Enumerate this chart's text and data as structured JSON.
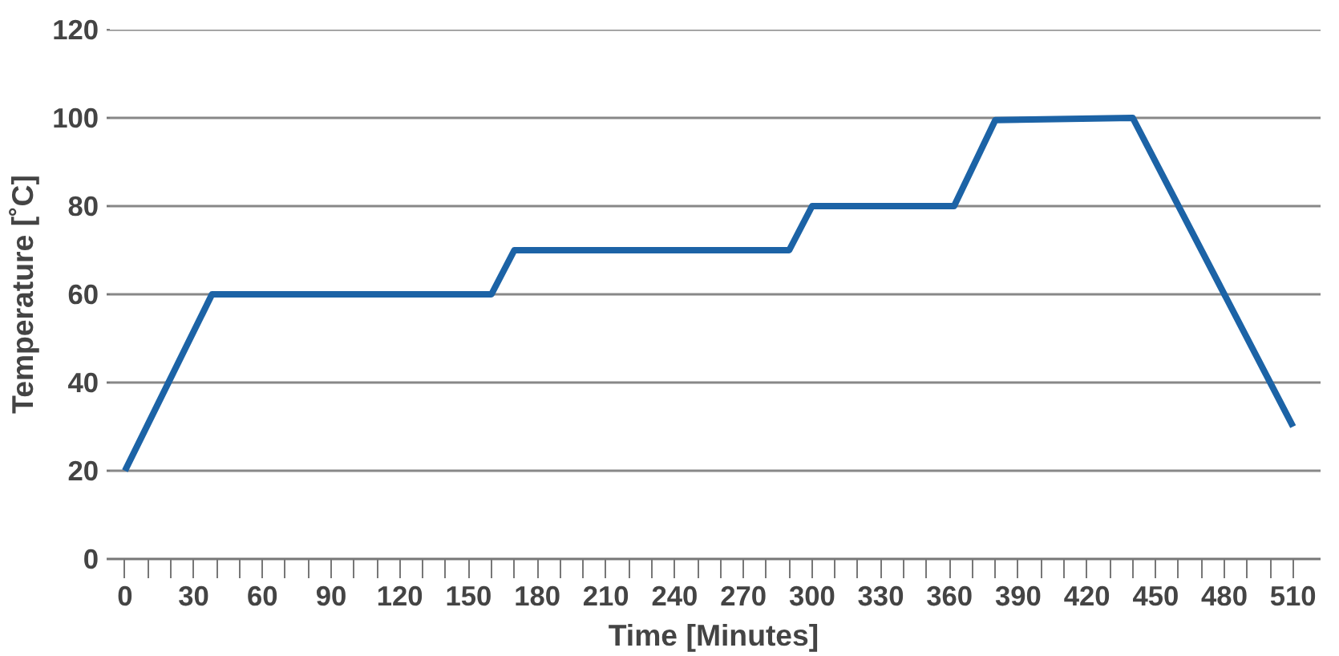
{
  "chart_data": {
    "type": "line",
    "xlabel": "Time [Minutes]",
    "ylabel": "Temperature [˚C]",
    "x": [
      0,
      38,
      160,
      170,
      290,
      300,
      362,
      380,
      440,
      510
    ],
    "series": [
      {
        "color": "#1c63a6",
        "values": [
          20,
          60,
          60,
          70,
          70,
          80,
          80,
          99.5,
          100,
          30
        ]
      }
    ],
    "xlim": [
      -8,
      522
    ],
    "ylim": [
      0,
      120
    ],
    "xticks": [
      0,
      {
        "value": 10,
        "label": null
      },
      {
        "value": 20,
        "label": null
      },
      30,
      {
        "value": 40,
        "label": null
      },
      {
        "value": 50,
        "label": null
      },
      60,
      {
        "value": 70,
        "label": null
      },
      {
        "value": 80,
        "label": null
      },
      90,
      {
        "value": 100,
        "label": null
      },
      {
        "value": 110,
        "label": null
      },
      120,
      {
        "value": 130,
        "label": null
      },
      {
        "value": 140,
        "label": null
      },
      150,
      {
        "value": 160,
        "label": null
      },
      {
        "value": 170,
        "label": null
      },
      180,
      {
        "value": 190,
        "label": null
      },
      {
        "value": 200,
        "label": null
      },
      210,
      {
        "value": 220,
        "label": null
      },
      {
        "value": 230,
        "label": null
      },
      240,
      {
        "value": 250,
        "label": null
      },
      {
        "value": 260,
        "label": null
      },
      270,
      {
        "value": 280,
        "label": null
      },
      {
        "value": 290,
        "label": null
      },
      300,
      {
        "value": 310,
        "label": null
      },
      {
        "value": 320,
        "label": null
      },
      330,
      {
        "value": 340,
        "label": null
      },
      {
        "value": 350,
        "label": null
      },
      360,
      {
        "value": 370,
        "label": null
      },
      {
        "value": 380,
        "label": null
      },
      390,
      {
        "value": 400,
        "label": null
      },
      {
        "value": 410,
        "label": null
      },
      420,
      {
        "value": 430,
        "label": null
      },
      {
        "value": 440,
        "label": null
      },
      450,
      {
        "value": 460,
        "label": null
      },
      {
        "value": 470,
        "label": null
      },
      480,
      {
        "value": 490,
        "label": null
      },
      {
        "value": 500,
        "label": null
      },
      510
    ],
    "yticks": [
      0,
      20,
      40,
      60,
      80,
      100,
      120
    ],
    "grid": "y",
    "marker": "none",
    "line_style": "solid"
  }
}
